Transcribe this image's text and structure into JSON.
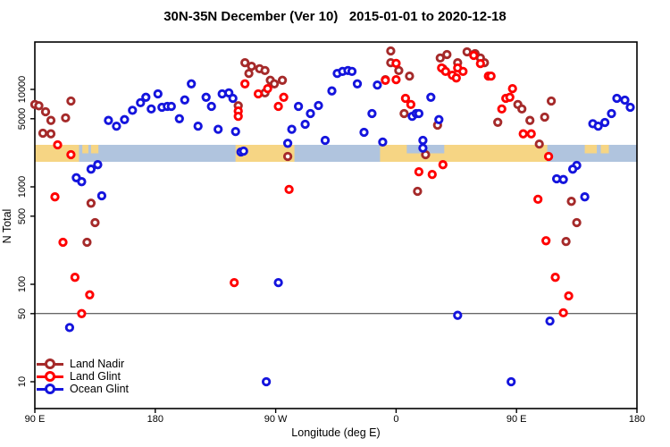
{
  "title": "30N-35N December (Ver 10)   2015-01-01 to 2020-12-18",
  "x_axis": {
    "label": "Longitude (deg E)",
    "range": [
      90,
      540
    ],
    "ticks": [
      {
        "value": 90,
        "label": "90 E"
      },
      {
        "value": 180,
        "label": "180"
      },
      {
        "value": 270,
        "label": "90 W"
      },
      {
        "value": 360,
        "label": "0"
      },
      {
        "value": 450,
        "label": "90 E"
      },
      {
        "value": 540,
        "label": "180"
      }
    ]
  },
  "y_axis": {
    "label": "N Total",
    "scale": "log",
    "ticks": [
      {
        "value": 10,
        "label": "10"
      },
      {
        "value": 50,
        "label": "50"
      },
      {
        "value": 100,
        "label": "100"
      },
      {
        "value": 500,
        "label": "500"
      },
      {
        "value": 1000,
        "label": "1000"
      },
      {
        "value": 5000,
        "label": "5000"
      },
      {
        "value": 10000,
        "label": "10000"
      }
    ]
  },
  "reference_line": {
    "y_value": 50,
    "color": "#333333"
  },
  "legend": {
    "items": [
      {
        "label": "Land Nadir",
        "color": "#A52A2A"
      },
      {
        "label": "Land Glint",
        "color": "#FF0000"
      },
      {
        "label": "Ocean Glint",
        "color": "#1414DD"
      }
    ]
  },
  "map_band": {
    "meaning": "land/ocean map strip of the 30N-35N latitude band",
    "n_range": [
      1850,
      2600
    ],
    "ocean_color": "#B0C4DE",
    "land_color": "#F6D584",
    "land_segments": [
      [
        90,
        123
      ],
      [
        240,
        284
      ],
      [
        348,
        473
      ]
    ],
    "ocean_notches_top_half": [
      [
        368,
        396
      ]
    ],
    "land_specks_top_half": [
      [
        125.5,
        130
      ],
      [
        132,
        137.5
      ],
      [
        501,
        510
      ],
      [
        513,
        519
      ]
    ]
  },
  "chart_data": {
    "type": "scatter",
    "title": "30N-35N December (Ver 10)   2015-01-01 to 2020-12-18",
    "xlabel": "Longitude (deg E)",
    "ylabel": "N Total",
    "x_range": [
      90,
      540
    ],
    "y_log_range": [
      5.3,
      30600
    ],
    "grid": false,
    "legend_position": "bottom-left",
    "series": [
      {
        "name": "Land Nadir",
        "color": "#A52A2A",
        "points": [
          [
            90,
            7000
          ],
          [
            93,
            6800
          ],
          [
            98,
            5900
          ],
          [
            102,
            4800
          ],
          [
            113,
            5100
          ],
          [
            117,
            7600
          ],
          [
            96,
            3550
          ],
          [
            102,
            3500
          ],
          [
            132,
            680
          ],
          [
            135,
            430
          ],
          [
            129,
            270
          ],
          [
            242,
            6800
          ],
          [
            247,
            18800
          ],
          [
            252,
            17300
          ],
          [
            258,
            16300
          ],
          [
            262,
            15600
          ],
          [
            250,
            14600
          ],
          [
            266,
            12400
          ],
          [
            269,
            11400
          ],
          [
            275,
            12400
          ],
          [
            262,
            9200
          ],
          [
            279,
            2050
          ],
          [
            356,
            24800
          ],
          [
            356,
            18800
          ],
          [
            362,
            15600
          ],
          [
            352,
            12600
          ],
          [
            370,
            13700
          ],
          [
            366,
            5650
          ],
          [
            395,
            16300
          ],
          [
            391,
            4300
          ],
          [
            382,
            2140
          ],
          [
            376,
            900
          ],
          [
            393,
            21000
          ],
          [
            398,
            22800
          ],
          [
            413,
            24300
          ],
          [
            419,
            23300
          ],
          [
            423,
            21000
          ],
          [
            426,
            18800
          ],
          [
            406,
            18800
          ],
          [
            451,
            7000
          ],
          [
            454,
            6300
          ],
          [
            436,
            4600
          ],
          [
            460,
            4800
          ],
          [
            471,
            5200
          ],
          [
            467,
            2750
          ],
          [
            476,
            7600
          ],
          [
            491,
            710
          ],
          [
            495,
            430
          ],
          [
            487,
            275
          ]
        ]
      },
      {
        "name": "Land Glint",
        "color": "#FF0000",
        "points": [
          [
            107,
            2700
          ],
          [
            117,
            2140
          ],
          [
            105,
            790
          ],
          [
            111,
            270
          ],
          [
            120,
            118
          ],
          [
            131,
            78
          ],
          [
            125,
            50
          ],
          [
            242,
            6000
          ],
          [
            242,
            5300
          ],
          [
            239,
            104
          ],
          [
            247,
            11400
          ],
          [
            257,
            9000
          ],
          [
            264,
            10200
          ],
          [
            276,
            8300
          ],
          [
            272,
            6700
          ],
          [
            280,
            940
          ],
          [
            360,
            18500
          ],
          [
            352,
            12400
          ],
          [
            360,
            12600
          ],
          [
            367,
            8100
          ],
          [
            371,
            7000
          ],
          [
            377,
            1430
          ],
          [
            387,
            1340
          ],
          [
            395,
            1690
          ],
          [
            394,
            16600
          ],
          [
            397,
            15300
          ],
          [
            402,
            14000
          ],
          [
            405,
            13100
          ],
          [
            406,
            16600
          ],
          [
            410,
            15300
          ],
          [
            423,
            18400
          ],
          [
            429,
            13700
          ],
          [
            418,
            22300
          ],
          [
            431,
            13700
          ],
          [
            447,
            10200
          ],
          [
            442,
            8100
          ],
          [
            445,
            8300
          ],
          [
            439,
            6300
          ],
          [
            455,
            3500
          ],
          [
            461,
            3500
          ],
          [
            474,
            2050
          ],
          [
            466,
            745
          ],
          [
            472,
            280
          ],
          [
            479,
            118
          ],
          [
            489,
            76
          ],
          [
            485,
            51
          ]
        ]
      },
      {
        "name": "Ocean Glint",
        "color": "#1414DD",
        "points": [
          [
            145,
            4800
          ],
          [
            151,
            4200
          ],
          [
            157,
            4900
          ],
          [
            163,
            6100
          ],
          [
            169,
            7300
          ],
          [
            173,
            8300
          ],
          [
            177,
            6300
          ],
          [
            182,
            9000
          ],
          [
            185,
            6550
          ],
          [
            189,
            6700
          ],
          [
            192,
            6700
          ],
          [
            198,
            5000
          ],
          [
            202,
            7800
          ],
          [
            207,
            11400
          ],
          [
            212,
            4200
          ],
          [
            218,
            8300
          ],
          [
            222,
            6700
          ],
          [
            227,
            3900
          ],
          [
            230,
            9000
          ],
          [
            235,
            9200
          ],
          [
            238,
            8100
          ],
          [
            240,
            3700
          ],
          [
            244,
            2280
          ],
          [
            121,
            1240
          ],
          [
            125,
            1130
          ],
          [
            132,
            1520
          ],
          [
            137,
            1690
          ],
          [
            140,
            810
          ],
          [
            116,
            36
          ],
          [
            316,
            14600
          ],
          [
            312,
            9650
          ],
          [
            302,
            6840
          ],
          [
            287,
            6700
          ],
          [
            296,
            5650
          ],
          [
            292,
            4390
          ],
          [
            282,
            3900
          ],
          [
            279,
            2800
          ],
          [
            307,
            3000
          ],
          [
            246,
            2330
          ],
          [
            272,
            104
          ],
          [
            263,
            10
          ],
          [
            320,
            15300
          ],
          [
            324,
            15600
          ],
          [
            327,
            15300
          ],
          [
            331,
            11400
          ],
          [
            346,
            11100
          ],
          [
            342,
            5650
          ],
          [
            336,
            3630
          ],
          [
            350,
            2880
          ],
          [
            372,
            5300
          ],
          [
            375,
            5650
          ],
          [
            377,
            5650
          ],
          [
            386,
            8300
          ],
          [
            392,
            4900
          ],
          [
            380,
            3000
          ],
          [
            380,
            2500
          ],
          [
            406,
            48
          ],
          [
            446,
            10
          ],
          [
            475,
            42
          ],
          [
            507,
            4440
          ],
          [
            511,
            4200
          ],
          [
            516,
            4580
          ],
          [
            521,
            5650
          ],
          [
            525,
            8100
          ],
          [
            531,
            7760
          ],
          [
            535,
            6550
          ],
          [
            495,
            1660
          ],
          [
            492,
            1520
          ],
          [
            480,
            1210
          ],
          [
            485,
            1190
          ],
          [
            501,
            790
          ]
        ]
      }
    ]
  }
}
